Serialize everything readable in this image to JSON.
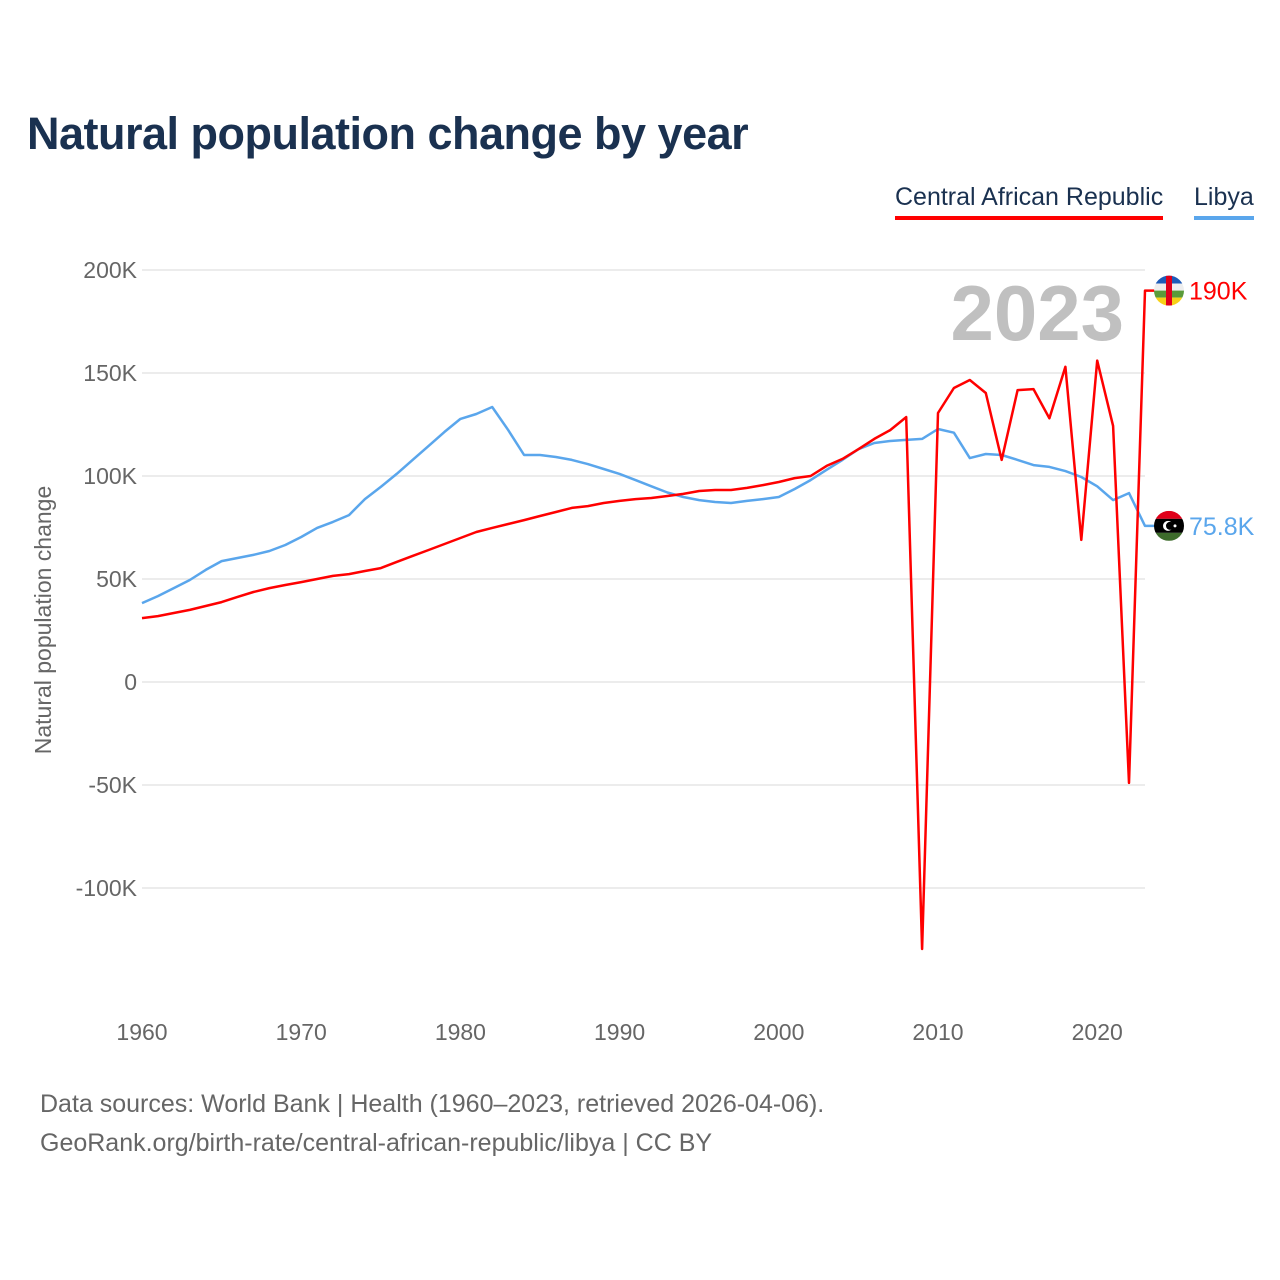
{
  "title": "Natural population change by year",
  "footer": {
    "line1": "Data sources: World Bank | Health (1960–2023, retrieved 2026-04-06).",
    "line2": "GeoRank.org/birth-rate/central-african-republic/libya | CC BY"
  },
  "chart_data": {
    "type": "line",
    "title": "Natural population change by year",
    "xlabel": "",
    "ylabel": "Natural population change",
    "year_label": "2023",
    "ylim": [
      -150000,
      210000
    ],
    "xlim": [
      1960,
      2023
    ],
    "y_ticks": [
      {
        "v": 200000,
        "label": "200K"
      },
      {
        "v": 150000,
        "label": "150K"
      },
      {
        "v": 100000,
        "label": "100K"
      },
      {
        "v": 50000,
        "label": "50K"
      },
      {
        "v": 0,
        "label": "0"
      },
      {
        "v": -50000,
        "label": "-50K"
      },
      {
        "v": -100000,
        "label": "-100K"
      }
    ],
    "x_ticks": [
      {
        "v": 1960,
        "label": "1960"
      },
      {
        "v": 1970,
        "label": "1970"
      },
      {
        "v": 1980,
        "label": "1980"
      },
      {
        "v": 1990,
        "label": "1990"
      },
      {
        "v": 2000,
        "label": "2000"
      },
      {
        "v": 2010,
        "label": "2010"
      },
      {
        "v": 2020,
        "label": "2020"
      }
    ],
    "grid": true,
    "legend_position": "top-right",
    "x_start": 1960,
    "series": [
      {
        "name": "Central African Republic",
        "color": "#ff0000",
        "end_label": "190K",
        "flag": "central-african-republic-flag",
        "values": [
          31000,
          32000,
          33500,
          35000,
          36900,
          38800,
          41300,
          43700,
          45600,
          47100,
          48500,
          50000,
          51500,
          52400,
          53900,
          55300,
          58300,
          61200,
          64100,
          67000,
          69900,
          72800,
          74800,
          76700,
          78600,
          80600,
          82500,
          84500,
          85400,
          86900,
          87900,
          88800,
          89300,
          90300,
          91300,
          92700,
          93200,
          93200,
          94200,
          95600,
          97100,
          99000,
          100000,
          104900,
          108300,
          113000,
          118000,
          122300,
          128600,
          -129600,
          130600,
          142700,
          146600,
          140300,
          107800,
          141700,
          142200,
          128000,
          153000,
          69000,
          156000,
          124300,
          -49000,
          190000
        ]
      },
      {
        "name": "Libya",
        "color": "#5aa6ec",
        "end_label": "75.8K",
        "flag": "libya-flag",
        "values": [
          38300,
          41700,
          45600,
          49500,
          54400,
          58700,
          60200,
          61700,
          63600,
          66500,
          70400,
          74800,
          77700,
          81000,
          88800,
          94700,
          101000,
          107800,
          114600,
          121400,
          127700,
          130100,
          133500,
          122300,
          110200,
          110200,
          109200,
          107800,
          105800,
          103400,
          101000,
          98000,
          95000,
          92000,
          89800,
          88300,
          87400,
          86900,
          87900,
          88800,
          89800,
          93700,
          98000,
          103000,
          107800,
          113000,
          116000,
          117000,
          117500,
          118000,
          122800,
          121000,
          108700,
          110700,
          110200,
          107800,
          105300,
          104400,
          102400,
          99500,
          95000,
          88300,
          91700,
          75800
        ]
      }
    ]
  }
}
